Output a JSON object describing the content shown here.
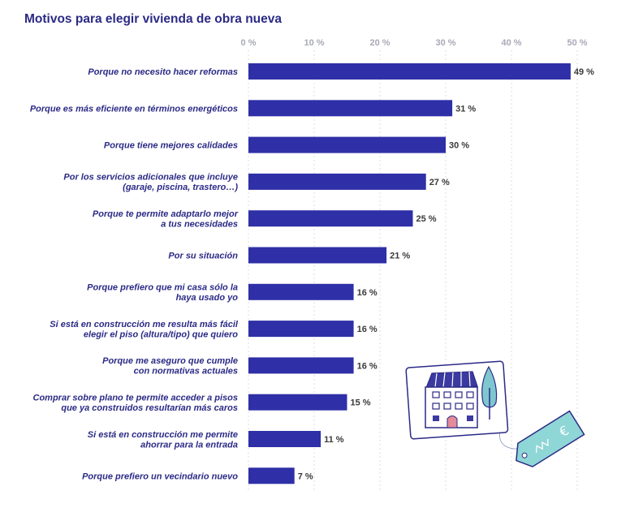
{
  "chart_data": {
    "type": "bar",
    "orientation": "horizontal",
    "title": "Motivos para elegir vivienda de obra nueva",
    "xlim": [
      0,
      50
    ],
    "xticks": [
      "0 %",
      "10 %",
      "20 %",
      "30 %",
      "40 %",
      "50 %"
    ],
    "bar_color": "#2f2fa8",
    "categories": [
      [
        "Porque no necesito hacer reformas"
      ],
      [
        "Porque es más eficiente en términos energéticos"
      ],
      [
        "Porque tiene mejores calidades"
      ],
      [
        "Por los servicios adicionales que incluye",
        "(garaje, piscina, trastero…)"
      ],
      [
        "Porque te permite adaptarlo mejor",
        "a tus necesidades"
      ],
      [
        "Por su situación"
      ],
      [
        "Porque prefiero que mi casa sólo la",
        "haya usado yo"
      ],
      [
        "Si está en construcción me resulta más fácil",
        "elegir el piso (altura/tipo) que quiero"
      ],
      [
        "Porque me aseguro que cumple",
        "con normativas actuales"
      ],
      [
        "Comprar sobre plano te permite acceder a pisos",
        "que ya construidos resultarían más caros"
      ],
      [
        "Si está en construcción me permite",
        "ahorrar para la entrada"
      ],
      [
        "Porque prefiero un vecindario nuevo"
      ]
    ],
    "values": [
      49,
      31,
      30,
      27,
      25,
      21,
      16,
      16,
      16,
      15,
      11,
      7
    ],
    "value_labels": [
      "49 %",
      "31 %",
      "30 %",
      "27 %",
      "25 %",
      "21 %",
      "16 %",
      "16 %",
      "16 %",
      "15 %",
      "11 %",
      "7 %"
    ]
  },
  "illustration": {
    "tag_symbol": "€",
    "colors": {
      "outline": "#2b2a86",
      "tag": "#8fd6d6",
      "tree": "#7fc7cf",
      "roof": "#3b3aa0",
      "door": "#e58a9a"
    }
  }
}
